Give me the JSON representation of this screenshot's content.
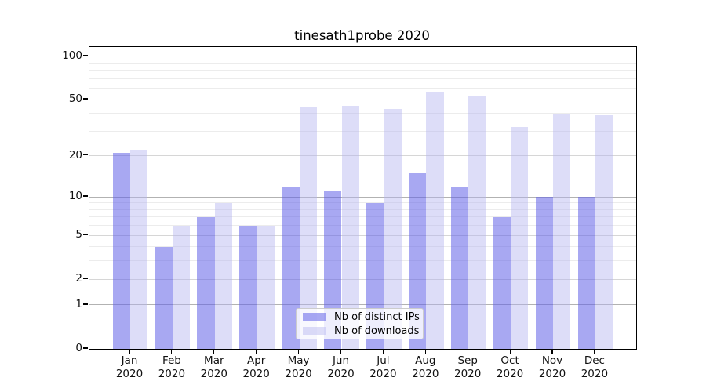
{
  "chart_data": {
    "type": "bar",
    "title": "tinesath1probe 2020",
    "categories": [
      "Jan",
      "Feb",
      "Mar",
      "Apr",
      "May",
      "Jun",
      "Jul",
      "Aug",
      "Sep",
      "Oct",
      "Nov",
      "Dec"
    ],
    "category_second_line": "2020",
    "series": [
      {
        "name": "Nb of distinct IPs",
        "color": "#6161e8",
        "alpha": 0.55,
        "values": [
          21,
          4,
          7,
          6,
          12,
          11,
          9,
          15,
          12,
          7,
          10,
          10
        ]
      },
      {
        "name": "Nb of downloads",
        "color": "#b4b4f0",
        "alpha": 0.45,
        "values": [
          22,
          6,
          9,
          6,
          44,
          45,
          43,
          57,
          53,
          32,
          40,
          39
        ]
      }
    ],
    "yscale": "log1p",
    "axis_range": [
      0,
      116
    ],
    "yticks": {
      "values": [
        0,
        1,
        2,
        5,
        10,
        20,
        50,
        100
      ],
      "labels": [
        "0",
        "1",
        "2",
        "5",
        "10",
        "20",
        "50",
        "100"
      ]
    },
    "minor_gridline_values": [
      3,
      4,
      6,
      7,
      8,
      9,
      30,
      40,
      60,
      70,
      80,
      90
    ],
    "grid": true,
    "legend_position": "lower center"
  },
  "legend": {
    "entries": [
      {
        "label": "Nb of distinct IPs"
      },
      {
        "label": "Nb of downloads"
      }
    ]
  }
}
